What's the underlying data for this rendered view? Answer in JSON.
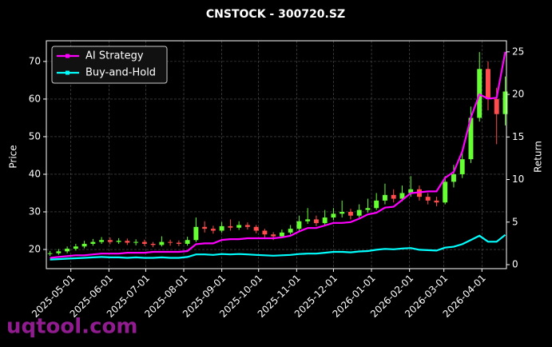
{
  "chart_data": {
    "type": "candlestick",
    "title": "CNSTOCK - 300720.SZ",
    "ylabel": "Price",
    "y2label": "Return",
    "x": [
      "2025-04-14",
      "2025-04-21",
      "2025-04-28",
      "2025-05-05",
      "2025-05-12",
      "2025-05-19",
      "2025-05-26",
      "2025-06-02",
      "2025-06-09",
      "2025-06-16",
      "2025-06-23",
      "2025-06-30",
      "2025-07-07",
      "2025-07-14",
      "2025-07-21",
      "2025-07-28",
      "2025-08-04",
      "2025-08-11",
      "2025-08-18",
      "2025-08-25",
      "2025-09-01",
      "2025-09-08",
      "2025-09-15",
      "2025-09-22",
      "2025-09-29",
      "2025-10-06",
      "2025-10-13",
      "2025-10-20",
      "2025-10-27",
      "2025-11-03",
      "2025-11-10",
      "2025-11-17",
      "2025-11-24",
      "2025-12-01",
      "2025-12-08",
      "2025-12-15",
      "2025-12-22",
      "2025-12-29",
      "2026-01-05",
      "2026-01-12",
      "2026-01-19",
      "2026-01-26",
      "2026-02-02",
      "2026-02-09",
      "2026-02-16",
      "2026-02-23",
      "2026-03-02",
      "2026-03-09",
      "2026-03-16",
      "2026-03-23",
      "2026-03-30",
      "2026-04-06",
      "2026-04-13",
      "2026-04-20"
    ],
    "open": [
      18.8,
      19.0,
      19.5,
      20.2,
      20.8,
      21.5,
      22.0,
      22.5,
      22.0,
      22.3,
      21.8,
      22.0,
      21.5,
      21.2,
      22.0,
      21.8,
      21.5,
      22.5,
      26.0,
      25.5,
      25.0,
      26.2,
      25.8,
      26.5,
      26.0,
      25.0,
      24.0,
      23.5,
      24.5,
      25.5,
      27.5,
      28.0,
      27.0,
      28.5,
      29.5,
      30.0,
      29.0,
      30.5,
      31.0,
      33.0,
      34.5,
      33.5,
      35.0,
      36.0,
      34.0,
      33.0,
      32.5,
      38.0,
      40.0,
      44.0,
      55.0,
      68.0,
      60.0,
      56.0
    ],
    "high": [
      19.6,
      20.1,
      20.8,
      21.5,
      22.3,
      22.8,
      23.3,
      23.2,
      23.0,
      22.9,
      22.7,
      22.6,
      22.0,
      23.5,
      22.6,
      22.4,
      23.4,
      28.5,
      27.5,
      26.3,
      27.3,
      28.0,
      27.5,
      27.2,
      26.5,
      25.5,
      24.6,
      25.3,
      26.5,
      29.0,
      31.0,
      29.0,
      30.5,
      31.0,
      33.0,
      30.8,
      32.0,
      33.5,
      35.0,
      37.5,
      36.0,
      37.0,
      39.5,
      37.0,
      35.0,
      34.0,
      39.5,
      42.5,
      46.0,
      58.0,
      72.5,
      70.0,
      63.0,
      66.0
    ],
    "low": [
      18.3,
      18.6,
      19.0,
      19.7,
      20.3,
      21.0,
      21.5,
      21.4,
      21.5,
      21.2,
      21.1,
      20.9,
      20.6,
      20.8,
      21.0,
      20.9,
      21.0,
      22.0,
      24.5,
      24.2,
      24.5,
      25.0,
      25.2,
      25.3,
      24.3,
      23.2,
      22.5,
      23.0,
      24.0,
      25.0,
      26.8,
      26.2,
      26.5,
      27.8,
      28.5,
      28.0,
      28.5,
      29.8,
      30.5,
      32.0,
      32.5,
      32.8,
      34.0,
      33.0,
      32.0,
      31.5,
      32.0,
      36.5,
      39.0,
      43.0,
      54.0,
      57.0,
      48.0,
      53.0
    ],
    "close": [
      19.0,
      19.5,
      20.2,
      20.8,
      21.5,
      22.0,
      22.5,
      22.0,
      22.3,
      21.8,
      22.0,
      21.5,
      21.2,
      22.0,
      21.8,
      21.5,
      22.5,
      26.0,
      25.5,
      25.0,
      26.2,
      25.8,
      26.5,
      26.0,
      25.0,
      24.0,
      23.5,
      24.5,
      25.5,
      27.5,
      28.0,
      27.0,
      28.5,
      29.5,
      30.0,
      29.0,
      30.5,
      31.0,
      33.0,
      34.5,
      33.5,
      35.0,
      36.0,
      34.0,
      33.0,
      32.5,
      38.0,
      40.0,
      44.0,
      55.0,
      68.0,
      60.0,
      56.0,
      62.0
    ],
    "up_color": "#66ff33",
    "down_color": "#ff4d4d",
    "series": [
      {
        "name": "AI Strategy",
        "color": "#ff00ff",
        "axis": "y2",
        "values": [
          0.8,
          0.9,
          1.0,
          1.1,
          1.1,
          1.2,
          1.3,
          1.3,
          1.3,
          1.4,
          1.4,
          1.4,
          1.5,
          1.5,
          1.5,
          1.5,
          1.6,
          2.4,
          2.5,
          2.5,
          2.9,
          3.0,
          3.0,
          3.1,
          3.1,
          3.1,
          3.1,
          3.2,
          3.4,
          3.9,
          4.3,
          4.3,
          4.6,
          4.9,
          4.9,
          5.0,
          5.4,
          5.9,
          6.1,
          6.7,
          6.8,
          7.6,
          8.4,
          8.5,
          8.6,
          8.6,
          10.2,
          10.9,
          13.3,
          17.3,
          20.0,
          19.5,
          19.6,
          25.0
        ]
      },
      {
        "name": "Buy-and-Hold",
        "color": "#00ffff",
        "axis": "y2",
        "values": [
          0.6,
          0.65,
          0.7,
          0.75,
          0.8,
          0.85,
          0.9,
          0.85,
          0.85,
          0.8,
          0.85,
          0.8,
          0.8,
          0.85,
          0.8,
          0.8,
          0.9,
          1.2,
          1.2,
          1.15,
          1.25,
          1.2,
          1.25,
          1.2,
          1.15,
          1.1,
          1.05,
          1.1,
          1.15,
          1.25,
          1.3,
          1.3,
          1.4,
          1.5,
          1.5,
          1.45,
          1.55,
          1.6,
          1.75,
          1.85,
          1.8,
          1.9,
          1.95,
          1.75,
          1.7,
          1.65,
          2.0,
          2.1,
          2.4,
          2.9,
          3.4,
          2.7,
          2.7,
          3.5
        ]
      }
    ],
    "xlim": [
      "2025-04-11",
      "2026-04-21"
    ],
    "xticks": [
      "2025-05-01",
      "2025-06-01",
      "2025-07-01",
      "2025-08-01",
      "2025-09-01",
      "2025-10-01",
      "2025-11-01",
      "2025-12-01",
      "2026-01-01",
      "2026-02-01",
      "2026-03-01",
      "2026-04-01"
    ],
    "ylim": [
      14.9,
      75.5
    ],
    "yticks": [
      20,
      30,
      40,
      50,
      60,
      70
    ],
    "y2lim": [
      -0.47,
      26.3
    ],
    "y2ticks": [
      0,
      5,
      10,
      15,
      20,
      25
    ],
    "grid": true,
    "legend": "upper left"
  },
  "watermark": "uqtool.com"
}
